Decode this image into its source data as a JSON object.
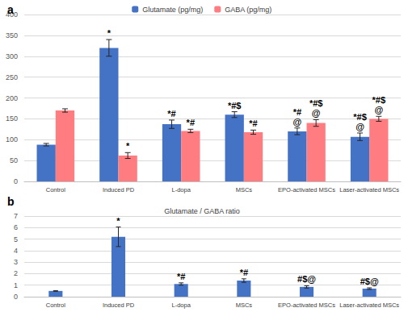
{
  "chart_data": [
    {
      "type": "bar",
      "panel": "a",
      "categories": [
        "Control",
        "Induced PD",
        "L-dopa",
        "MSCs",
        "EPO-activated MSCs",
        "Laser-activated MSCs"
      ],
      "series": [
        {
          "name": "Glutamate (pg/mg)",
          "color": "#4472C4",
          "values": [
            88,
            320,
            137,
            160,
            120,
            107
          ],
          "errors": [
            3,
            20,
            10,
            7,
            8,
            9
          ],
          "annotations": [
            null,
            [
              "*"
            ],
            [
              "*#"
            ],
            [
              "*#$"
            ],
            [
              "*#",
              "@"
            ],
            [
              "*#$",
              "@"
            ]
          ]
        },
        {
          "name": "GABA (pg/mg)",
          "color": "#FF7C80",
          "values": [
            170,
            62,
            121,
            118,
            140,
            150
          ],
          "errors": [
            4,
            7,
            4,
            5,
            8,
            6
          ],
          "annotations": [
            null,
            [
              "*"
            ],
            [
              "*#"
            ],
            [
              "*#"
            ],
            [
              "*#$",
              "@"
            ],
            [
              "*#$",
              "@"
            ]
          ]
        }
      ],
      "ylim": [
        0,
        400
      ],
      "yticks": [
        0,
        50,
        100,
        150,
        200,
        250,
        300,
        350,
        400
      ],
      "grid": true,
      "legend": "top"
    },
    {
      "type": "bar",
      "panel": "b",
      "title": "Glutamate / GABA ratio",
      "categories": [
        "Control",
        "Induced PD",
        "L-dopa",
        "MSCs",
        "EPO-activated MSCs",
        "Laser-activated MSCs"
      ],
      "values": [
        0.5,
        5.2,
        1.1,
        1.4,
        0.85,
        0.7
      ],
      "errors": [
        0.03,
        0.85,
        0.1,
        0.15,
        0.1,
        0.07
      ],
      "annotations": [
        null,
        [
          "*"
        ],
        [
          "*#"
        ],
        [
          "*#"
        ],
        [
          "#$@"
        ],
        [
          "#$@"
        ]
      ],
      "color": "#4472C4",
      "ylim": [
        0,
        7
      ],
      "yticks": [
        0,
        1,
        2,
        3,
        4,
        5,
        6,
        7
      ],
      "grid": true
    }
  ]
}
